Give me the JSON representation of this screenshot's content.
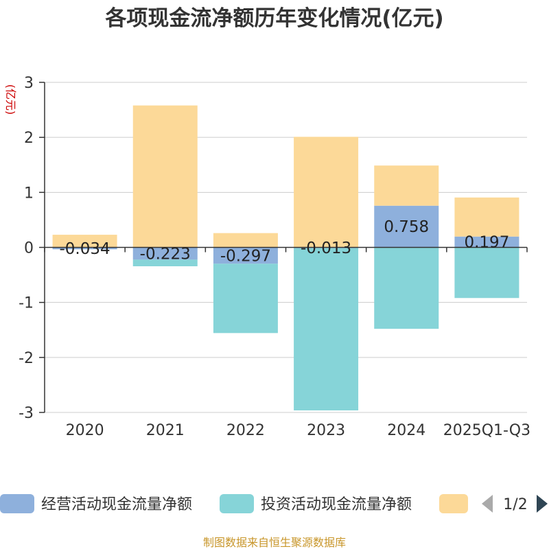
{
  "chart_data": {
    "type": "bar",
    "stacked": true,
    "title": "各项现金流净额历年变化情况(亿元)",
    "yunit": "(亿元)",
    "categories": [
      "2020",
      "2021",
      "2022",
      "2023",
      "2024",
      "2025Q1-Q3"
    ],
    "ylim": [
      -3,
      3
    ],
    "yticks": [
      3,
      2,
      1,
      0,
      -1,
      -2,
      -3
    ],
    "series": [
      {
        "name": "经营活动现金流量净额",
        "color": "#8eb0dc",
        "values": [
          -0.034,
          -0.223,
          -0.297,
          -0.013,
          0.758,
          0.197
        ],
        "labels": [
          "-0.034",
          "-0.223",
          "-0.297",
          "-0.013",
          "0.758",
          "0.197"
        ]
      },
      {
        "name": "投资活动现金流量净额",
        "color": "#86d4d8",
        "values": [
          0,
          -0.12,
          -1.26,
          -2.95,
          -1.48,
          -0.92
        ]
      },
      {
        "name": "",
        "color": "#fcd998",
        "values": [
          0.23,
          2.58,
          0.26,
          2.01,
          0.73,
          0.71
        ]
      }
    ],
    "legend": {
      "items": [
        "经营活动现金流量净额",
        "投资活动现金流量净额",
        ""
      ],
      "page": "1/2"
    },
    "source": "制图数据来自恒生聚源数据库"
  }
}
